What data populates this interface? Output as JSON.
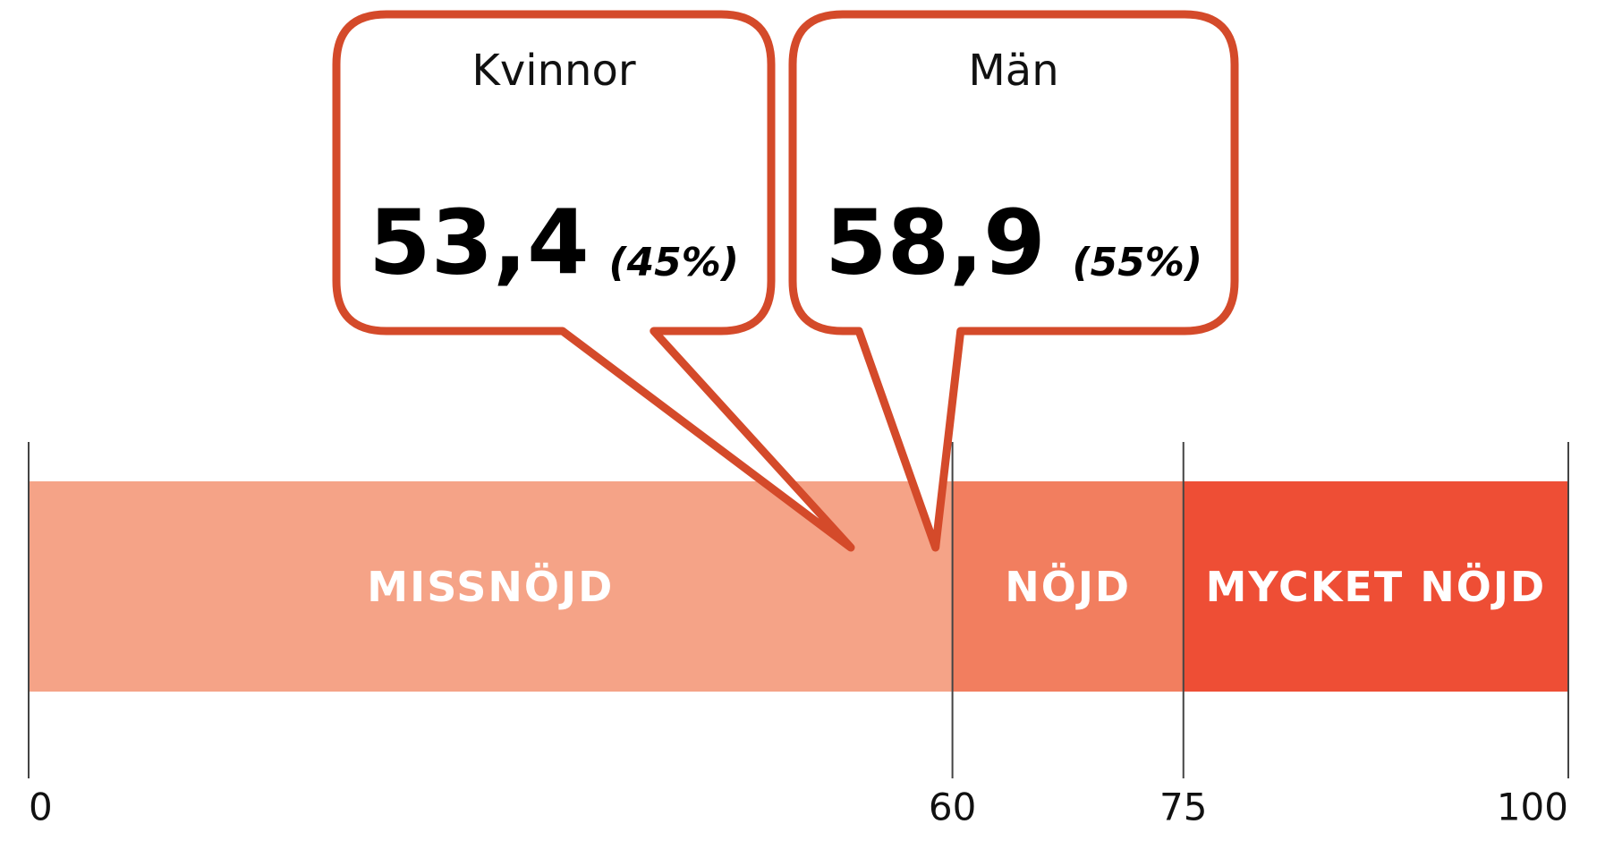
{
  "chart_data": {
    "type": "scale",
    "xlim": [
      0,
      100
    ],
    "xticks": [
      0,
      60,
      75,
      100
    ],
    "segments": [
      {
        "name": "MISSNÖJD",
        "from": 0,
        "to": 60,
        "color": "#f5a387"
      },
      {
        "name": "NÖJD",
        "from": 60,
        "to": 75,
        "color": "#f27e5f"
      },
      {
        "name": "MYCKET NÖJD",
        "from": 75,
        "to": 100,
        "color": "#ee4e35"
      }
    ],
    "markers": [
      {
        "name": "Kvinnor",
        "value": 53.4,
        "value_label": "53,4",
        "share": 45,
        "share_label": "(45%)"
      },
      {
        "name": "Män",
        "value": 58.9,
        "value_label": "58,9",
        "share": 55,
        "share_label": "(55%)"
      }
    ],
    "marker_color": "#d44a2a"
  }
}
